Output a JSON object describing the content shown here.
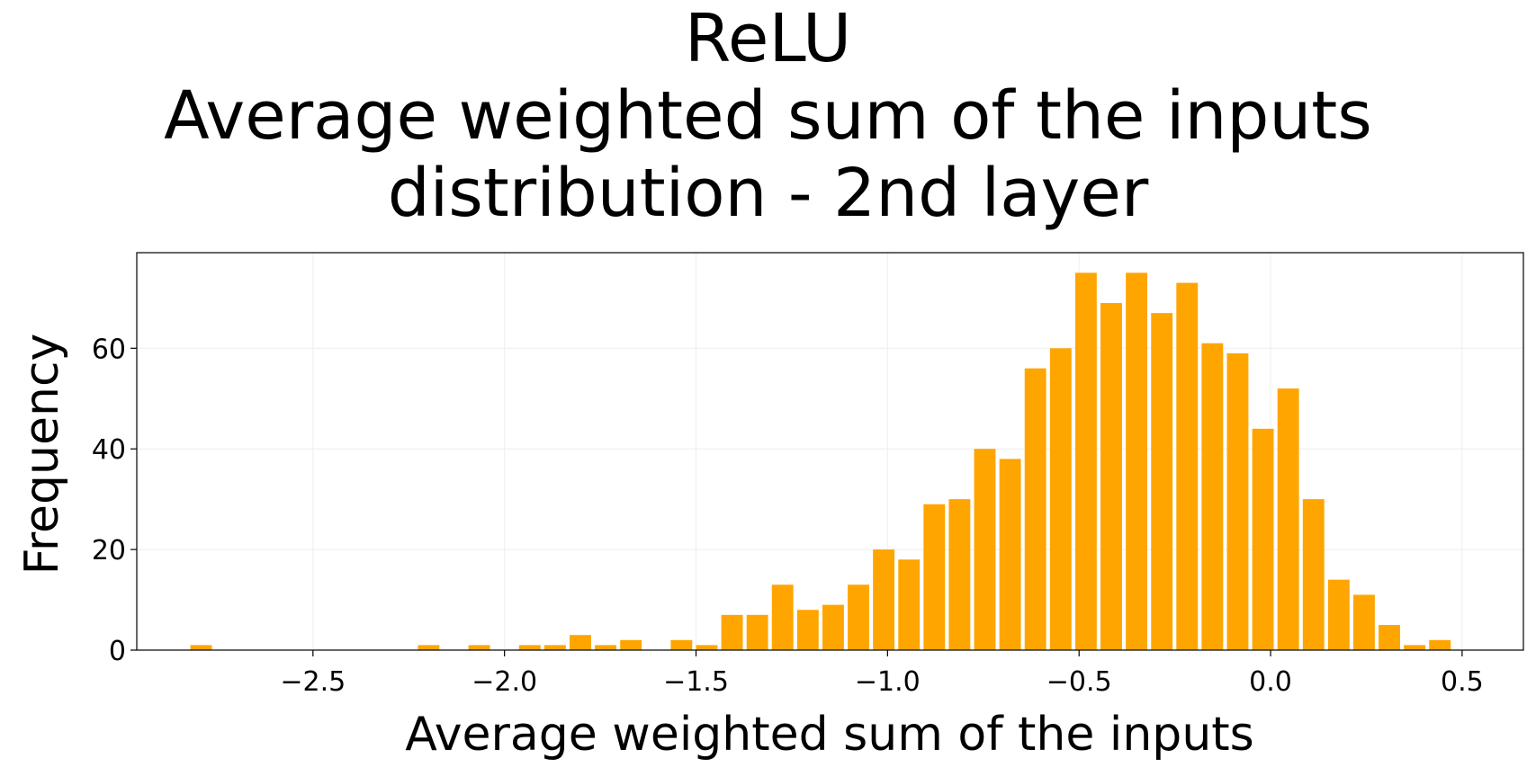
{
  "chart_data": {
    "type": "bar",
    "title_lines": [
      "ReLU",
      "Average weighted sum of the inputs",
      "distribution - 2nd layer"
    ],
    "xlabel": "Average weighted sum of the inputs",
    "ylabel": "Frequency",
    "xlim": [
      -2.96,
      0.66
    ],
    "ylim": [
      0,
      79
    ],
    "x_ticks": [
      -2.5,
      -2.0,
      -1.5,
      -1.0,
      -0.5,
      0.0,
      0.5
    ],
    "x_tick_labels": [
      "−2.5",
      "−2.0",
      "−1.5",
      "−1.0",
      "−0.5",
      "0.0",
      "0.5"
    ],
    "y_ticks": [
      0,
      20,
      40,
      60
    ],
    "y_tick_labels": [
      "0",
      "20",
      "40",
      "60"
    ],
    "grid": true,
    "bar_color": "#ffa500",
    "bin_start": -2.82,
    "bin_width": 0.066,
    "bar_fraction": 0.85,
    "values": [
      1,
      0,
      0,
      0,
      0,
      0,
      0,
      0,
      0,
      1,
      0,
      1,
      0,
      1,
      1,
      3,
      1,
      2,
      0,
      2,
      1,
      7,
      7,
      13,
      8,
      9,
      13,
      20,
      18,
      29,
      30,
      40,
      38,
      56,
      60,
      75,
      69,
      75,
      67,
      73,
      61,
      59,
      44,
      52,
      30,
      14,
      11,
      5,
      1,
      2
    ]
  }
}
